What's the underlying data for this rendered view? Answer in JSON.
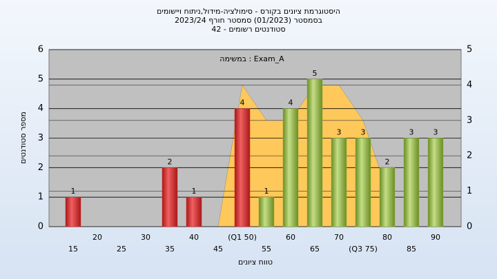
{
  "chart_data": {
    "type": "bar",
    "title": "היסטוגרמת ציונים בקורס - סימולציה-מידול,ניתוח ויישומים",
    "subtitle": "בסמסטר  (01/2023)  סמסטר חורף 2023/24",
    "subtitle2": "סטודנטים רשומים - 42",
    "annotation": "במשימה : Exam_A",
    "xlabel": "טווח ציונים",
    "ylabel": "מספר סטודנטים",
    "categories": [
      "15",
      "20",
      "25",
      "30",
      "35",
      "40",
      "45",
      "(Q1 50)",
      "55",
      "60",
      "65",
      "70",
      "(Q3 75)",
      "80",
      "85",
      "90"
    ],
    "series": [
      {
        "values": [
          1,
          0,
          0,
          0,
          2,
          1,
          0,
          4,
          1,
          4,
          5,
          3,
          3,
          2,
          3,
          3
        ],
        "colors": [
          "#d42a2a",
          "#d42a2a",
          "#d42a2a",
          "#d42a2a",
          "#d42a2a",
          "#d42a2a",
          "#d42a2a",
          "#d42a2a",
          "#8cb33c",
          "#8cb33c",
          "#8cb33c",
          "#8cb33c",
          "#8cb33c",
          "#8cb33c",
          "#8cb33c",
          "#8cb33c"
        ]
      },
      {
        "type": "area",
        "axis": "y2",
        "color": "#ffc85a",
        "values": [
          null,
          null,
          null,
          null,
          null,
          null,
          0,
          4,
          3,
          3,
          4,
          4,
          3,
          1,
          null,
          null
        ]
      }
    ],
    "ylim": [
      0,
      6
    ],
    "yticks": [
      0,
      1,
      2,
      3,
      4,
      5,
      6
    ],
    "y2lim": [
      0,
      5
    ],
    "y2ticks": [
      0,
      1,
      2,
      3,
      4,
      5
    ],
    "grid": true
  }
}
